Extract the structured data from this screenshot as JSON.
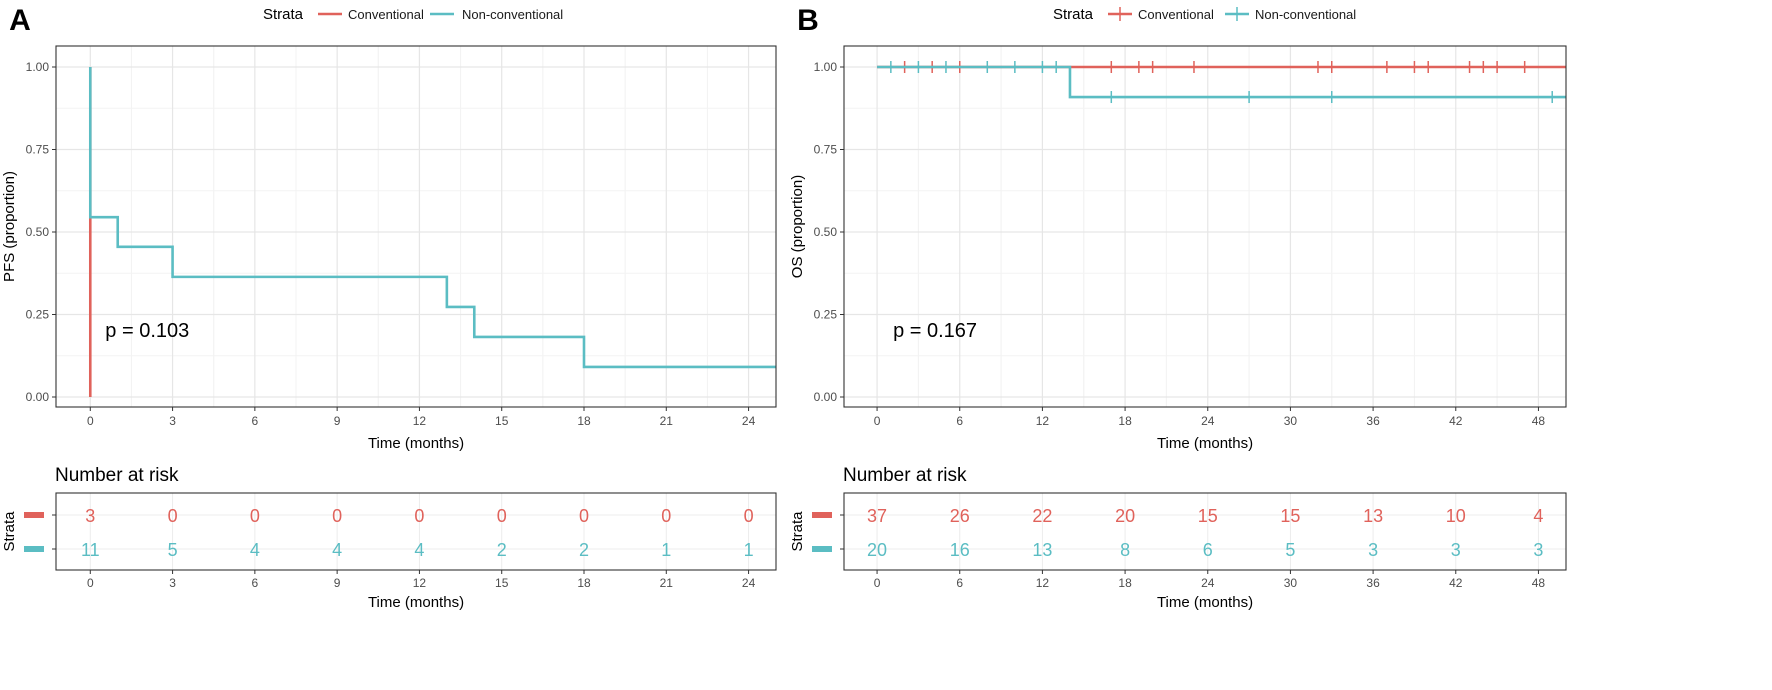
{
  "panels": [
    {
      "letter": "A",
      "legend": {
        "title": "Strata",
        "items": [
          "Conventional",
          "Non-conventional"
        ]
      },
      "colors": {
        "conventional": "#E0625B",
        "nonconventional": "#5BBDC3"
      },
      "chart_data": {
        "type": "line",
        "subtype": "kaplan-meier",
        "title": "",
        "xlabel": "Time (months)",
        "ylabel": "PFS (proportion)",
        "xlim": [
          -1.25,
          25
        ],
        "ylim": [
          0,
          1
        ],
        "xticks": [
          0,
          3,
          6,
          9,
          12,
          15,
          18,
          21,
          24
        ],
        "xtick_labels": [
          "0",
          "3",
          "6",
          "9",
          "12",
          "15",
          "18",
          "21",
          "24"
        ],
        "yticks": [
          0,
          0.25,
          0.5,
          0.75,
          1
        ],
        "ytick_labels": [
          "0.00",
          "0.25",
          "0.50",
          "0.75",
          "1.00"
        ],
        "grid": true,
        "annotation": "p = 0.103",
        "series": [
          {
            "name": "Conventional",
            "steps": [
              [
                0,
                1
              ],
              [
                0,
                0.545
              ],
              [
                0,
                0
              ]
            ],
            "censor_x": []
          },
          {
            "name": "Non-conventional",
            "steps": [
              [
                0,
                1
              ],
              [
                0,
                0.545
              ],
              [
                1,
                0.455
              ],
              [
                3,
                0.364
              ],
              [
                13,
                0.273
              ],
              [
                14,
                0.182
              ],
              [
                18,
                0.091
              ],
              [
                25,
                0.091
              ]
            ],
            "censor_x": []
          }
        ]
      },
      "risk_table": {
        "title": "Number at risk",
        "ylabel": "Strata",
        "xlabel": "Time (months)",
        "times": [
          0,
          3,
          6,
          9,
          12,
          15,
          18,
          21,
          24
        ],
        "time_labels": [
          "0",
          "3",
          "6",
          "9",
          "12",
          "15",
          "18",
          "21",
          "24"
        ],
        "rows": [
          {
            "name": "Conventional",
            "values": [
              "3",
              "0",
              "0",
              "0",
              "0",
              "0",
              "0",
              "0",
              "0"
            ]
          },
          {
            "name": "Non-conventional",
            "values": [
              "11",
              "5",
              "4",
              "4",
              "4",
              "2",
              "2",
              "1",
              "1"
            ]
          }
        ]
      }
    },
    {
      "letter": "B",
      "legend": {
        "title": "Strata",
        "items": [
          "Conventional",
          "Non-conventional"
        ]
      },
      "colors": {
        "conventional": "#E0625B",
        "nonconventional": "#5BBDC3"
      },
      "chart_data": {
        "type": "line",
        "subtype": "kaplan-meier",
        "title": "",
        "xlabel": "Time (months)",
        "ylabel": "OS (proportion)",
        "xlim": [
          -2.4,
          50
        ],
        "ylim": [
          0,
          1
        ],
        "xticks": [
          0,
          6,
          12,
          18,
          24,
          30,
          36,
          42,
          48
        ],
        "xtick_labels": [
          "0",
          "6",
          "12",
          "18",
          "24",
          "30",
          "36",
          "42",
          "48"
        ],
        "yticks": [
          0,
          0.25,
          0.5,
          0.75,
          1
        ],
        "ytick_labels": [
          "0.00",
          "0.25",
          "0.50",
          "0.75",
          "1.00"
        ],
        "grid": true,
        "annotation": "p = 0.167",
        "series": [
          {
            "name": "Conventional",
            "steps": [
              [
                0,
                1
              ],
              [
                50,
                1
              ]
            ],
            "censor_x": [
              2,
              4,
              6,
              17,
              19,
              20,
              23,
              32,
              33,
              37,
              39,
              40,
              43,
              44,
              45,
              47
            ]
          },
          {
            "name": "Non-conventional",
            "steps": [
              [
                0,
                1
              ],
              [
                14,
                0.909
              ],
              [
                50,
                0.909
              ]
            ],
            "censor_x": [
              1,
              3,
              5,
              8,
              10,
              12,
              13,
              17,
              27,
              33,
              49
            ]
          }
        ]
      },
      "risk_table": {
        "title": "Number at risk",
        "ylabel": "Strata",
        "xlabel": "Time (months)",
        "times": [
          0,
          6,
          12,
          18,
          24,
          30,
          36,
          42,
          48
        ],
        "time_labels": [
          "0",
          "6",
          "12",
          "18",
          "24",
          "30",
          "36",
          "42",
          "48"
        ],
        "rows": [
          {
            "name": "Conventional",
            "values": [
              "37",
              "26",
              "22",
              "20",
              "15",
              "15",
              "13",
              "10",
              "4"
            ]
          },
          {
            "name": "Non-conventional",
            "values": [
              "20",
              "16",
              "13",
              "8",
              "6",
              "5",
              "3",
              "3",
              "3"
            ]
          }
        ]
      }
    }
  ]
}
